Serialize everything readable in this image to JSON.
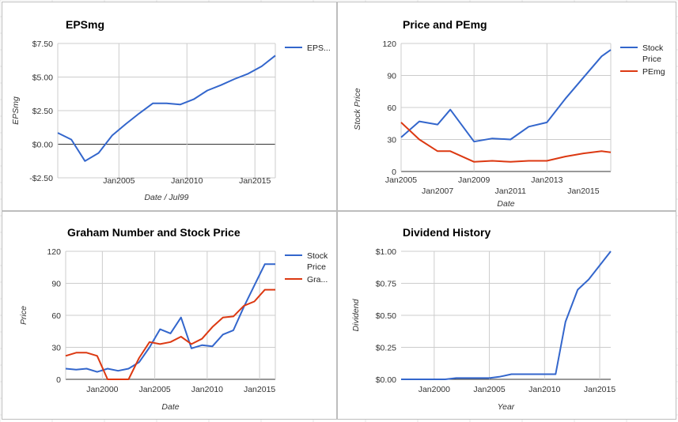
{
  "chart_data": [
    {
      "type": "line",
      "title": "EPSmg",
      "xlabel": "Date / Jul99",
      "ylabel": "EPSmg",
      "xlim": [
        2000.5,
        2016.5
      ],
      "ylim": [
        -2.5,
        7.5
      ],
      "yticks": [
        -2.5,
        0,
        2.5,
        5,
        7.5
      ],
      "ytick_labels": [
        "-$2.50",
        "$0.00",
        "$2.50",
        "$5.00",
        "$7.50"
      ],
      "xticks": [
        2005,
        2010,
        2015
      ],
      "xtick_labels": [
        "Jan2005",
        "Jan2010",
        "Jan2015"
      ],
      "xgrid": [
        2000.5,
        2005,
        2010,
        2015,
        2016.5
      ],
      "zero_line": true,
      "legend_position": "right",
      "series": [
        {
          "name": "EPS...",
          "color": "#3366cc",
          "x": [
            2000.5,
            2001.5,
            2002.5,
            2003.5,
            2004.5,
            2005.5,
            2006.5,
            2007.5,
            2008.5,
            2009.5,
            2010.5,
            2011.5,
            2012.5,
            2013.5,
            2014.5,
            2015.5,
            2016.5
          ],
          "y": [
            0.85,
            0.35,
            -1.25,
            -0.65,
            0.65,
            1.5,
            2.3,
            3.05,
            3.05,
            2.95,
            3.35,
            4.0,
            4.4,
            4.85,
            5.25,
            5.8,
            6.6
          ]
        }
      ]
    },
    {
      "type": "line",
      "title": "Price and PEmg",
      "xlabel": "Date",
      "ylabel": "Stock Price",
      "xlim": [
        2005,
        2016.5
      ],
      "ylim": [
        0,
        120
      ],
      "yticks": [
        0,
        30,
        60,
        90,
        120
      ],
      "ytick_labels": [
        "0",
        "30",
        "60",
        "90",
        "120"
      ],
      "xticks": [
        2005,
        2007,
        2009,
        2011,
        2013,
        2015
      ],
      "xtick_labels": [
        "Jan2005",
        "Jan2007",
        "Jan2009",
        "Jan2011",
        "Jan2013",
        "Jan2015"
      ],
      "xgrid": [
        2005,
        2009,
        2013,
        2016.5
      ],
      "legend_position": "right",
      "series": [
        {
          "name": "Stock Price",
          "color": "#3366cc",
          "x": [
            2005,
            2006,
            2007,
            2007.7,
            2009,
            2010,
            2011,
            2012,
            2013,
            2014,
            2015,
            2016,
            2016.5
          ],
          "y": [
            32,
            47,
            44,
            58,
            28,
            31,
            30,
            42,
            46,
            68,
            88,
            108,
            114
          ]
        },
        {
          "name": "PEmg",
          "color": "#dc3912",
          "x": [
            2005,
            2006,
            2007,
            2007.7,
            2009,
            2010,
            2011,
            2012,
            2013,
            2014,
            2015,
            2016,
            2016.5
          ],
          "y": [
            46,
            30,
            19,
            19,
            9,
            10,
            9,
            10,
            10,
            14,
            17,
            19,
            18
          ]
        }
      ]
    },
    {
      "type": "line",
      "title": "Graham Number and Stock Price",
      "xlabel": "Date",
      "ylabel": "Price",
      "xlim": [
        1996.5,
        2016.5
      ],
      "ylim": [
        0,
        120
      ],
      "yticks": [
        0,
        30,
        60,
        90,
        120
      ],
      "ytick_labels": [
        "0",
        "30",
        "60",
        "90",
        "120"
      ],
      "xticks": [
        2000,
        2005,
        2010,
        2015
      ],
      "xtick_labels": [
        "Jan2000",
        "Jan2005",
        "Jan2010",
        "Jan2015"
      ],
      "xgrid": [
        1996.5,
        2000,
        2005,
        2010,
        2015,
        2016.5
      ],
      "legend_position": "right",
      "series": [
        {
          "name": "Stock Price",
          "color": "#3366cc",
          "x": [
            1996.5,
            1997.5,
            1998.5,
            1999.5,
            2000.5,
            2001.5,
            2002.5,
            2003.5,
            2004.5,
            2005.5,
            2006.5,
            2007.5,
            2008.5,
            2009.5,
            2010.5,
            2011.5,
            2012.5,
            2013.5,
            2014.5,
            2015.5,
            2016.5
          ],
          "y": [
            10,
            9,
            10,
            7,
            10,
            8,
            10,
            16,
            30,
            47,
            43,
            58,
            29,
            32,
            31,
            42,
            46,
            68,
            88,
            108,
            108
          ]
        },
        {
          "name": "Gra...",
          "color": "#dc3912",
          "x": [
            1996.5,
            1997.5,
            1998.5,
            1999.5,
            2000.5,
            2001.5,
            2002.5,
            2003.5,
            2004.5,
            2005.5,
            2006.5,
            2007.5,
            2008.5,
            2009.5,
            2010.5,
            2011.5,
            2012.5,
            2013.5,
            2014.5,
            2015.5,
            2016.5
          ],
          "y": [
            22,
            25,
            25,
            22,
            0,
            0,
            0,
            20,
            35,
            33,
            35,
            40,
            33,
            38,
            49,
            58,
            59,
            69,
            73,
            84,
            84
          ]
        }
      ]
    },
    {
      "type": "line",
      "title": "Dividend History",
      "xlabel": "Year",
      "ylabel": "Dividend",
      "xlim": [
        1997,
        2016
      ],
      "ylim": [
        0,
        1
      ],
      "yticks": [
        0,
        0.25,
        0.5,
        0.75,
        1
      ],
      "ytick_labels": [
        "$0.00",
        "$0.25",
        "$0.50",
        "$0.75",
        "$1.00"
      ],
      "xticks": [
        2000,
        2005,
        2010,
        2015
      ],
      "xtick_labels": [
        "Jan2000",
        "Jan2005",
        "Jan2010",
        "Jan2015"
      ],
      "xgrid": [
        2000,
        2005,
        2010,
        2015
      ],
      "legend_position": "none",
      "series": [
        {
          "color": "#3366cc",
          "x": [
            1997,
            2001,
            2002,
            2005,
            2005.9,
            2007,
            2008,
            2009,
            2010,
            2011,
            2011.9,
            2013,
            2014,
            2016
          ],
          "y": [
            0,
            0,
            0.01,
            0.01,
            0.02,
            0.04,
            0.04,
            0.04,
            0.04,
            0.04,
            0.45,
            0.7,
            0.78,
            1.0
          ]
        }
      ]
    }
  ]
}
